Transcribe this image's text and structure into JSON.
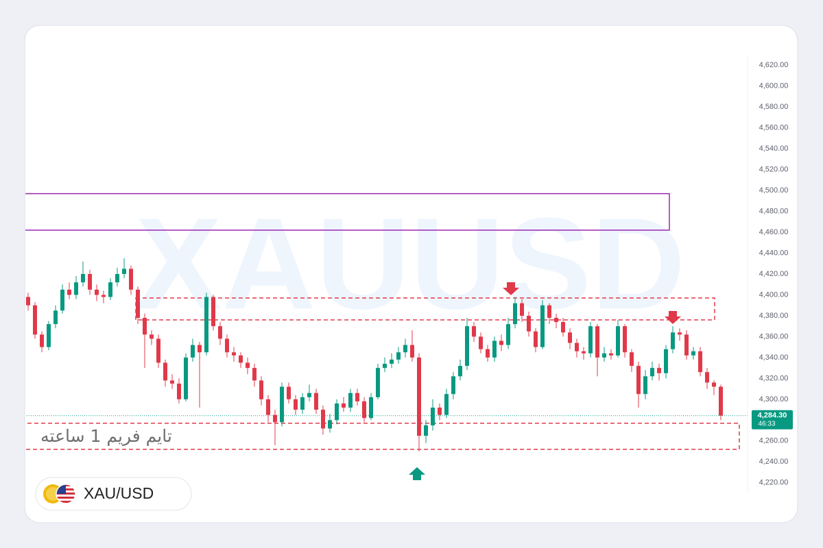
{
  "chart_data": {
    "type": "candlestick",
    "watermark": "XAUUSD",
    "timeframe_note": "تایم فریم 1 ساعته",
    "symbol": "XAU/USD",
    "up_color": "#089981",
    "down_color": "#e0394a",
    "ylim": [
      4210,
      4630
    ],
    "yticks": [
      {
        "value": 4220,
        "label": "4,220.00"
      },
      {
        "value": 4240,
        "label": "4,240.00"
      },
      {
        "value": 4260,
        "label": "4,260.00"
      },
      {
        "value": 4280,
        "label": "4,280.00"
      },
      {
        "value": 4300,
        "label": "4,300.00"
      },
      {
        "value": 4320,
        "label": "4,320.00"
      },
      {
        "value": 4340,
        "label": "4,340.00"
      },
      {
        "value": 4360,
        "label": "4,360.00"
      },
      {
        "value": 4380,
        "label": "4,380.00"
      },
      {
        "value": 4400,
        "label": "4,400.00"
      },
      {
        "value": 4420,
        "label": "4,420.00"
      },
      {
        "value": 4440,
        "label": "4,440.00"
      },
      {
        "value": 4460,
        "label": "4,460.00"
      },
      {
        "value": 4480,
        "label": "4,480.00"
      },
      {
        "value": 4500,
        "label": "4,500.00"
      },
      {
        "value": 4520,
        "label": "4,520.00"
      },
      {
        "value": 4540,
        "label": "4,540.00"
      },
      {
        "value": 4560,
        "label": "4,560.00"
      },
      {
        "value": 4580,
        "label": "4,580.00"
      },
      {
        "value": 4600,
        "label": "4,600.00"
      },
      {
        "value": 4620,
        "label": "4,620.00"
      }
    ],
    "last_price": {
      "value": 4284.3,
      "label": "4,284.30"
    },
    "countdown": "46:33",
    "zones": [
      {
        "top": 4497,
        "bottom": 4462,
        "color": "#9c27b0",
        "style": "solid"
      },
      {
        "top": 4397,
        "bottom": 4376,
        "color": "#e0394a",
        "style": "dashed"
      },
      {
        "top": 4277,
        "bottom": 4252,
        "color": "#e0394a",
        "style": "dashed"
      }
    ],
    "candles": {
      "open": [
        4398,
        4390,
        4362,
        4350,
        4372,
        4385,
        4405,
        4400,
        4412,
        4420,
        4405,
        4400,
        4398,
        4412,
        4420,
        4425,
        4405,
        4378,
        4362,
        4358,
        4335,
        4318,
        4315,
        4300,
        4340,
        4352,
        4345,
        4398,
        4370,
        4358,
        4345,
        4342,
        4335,
        4330,
        4318,
        4300,
        4285,
        4278,
        4312,
        4300,
        4290,
        4302,
        4306,
        4290,
        4272,
        4280,
        4296,
        4292,
        4306,
        4298,
        4282,
        4302,
        4330,
        4334,
        4338,
        4345,
        4352,
        4340,
        4265,
        4275,
        4292,
        4285,
        4305,
        4322,
        4332,
        4370,
        4360,
        4348,
        4340,
        4356,
        4352,
        4372,
        4392,
        4380,
        4365,
        4350,
        4390,
        4378,
        4374,
        4364,
        4354,
        4346,
        4344,
        4370,
        4340,
        4344,
        4342,
        4370,
        4345,
        4332,
        4305,
        4322,
        4330,
        4325,
        4348,
        4364,
        4362,
        4342,
        4346,
        4326,
        4316,
        4312
      ],
      "high": [
        4402,
        4393,
        4365,
        4375,
        4390,
        4410,
        4412,
        4418,
        4432,
        4424,
        4410,
        4404,
        4416,
        4426,
        4435,
        4428,
        4408,
        4382,
        4366,
        4362,
        4338,
        4324,
        4320,
        4344,
        4358,
        4355,
        4402,
        4400,
        4374,
        4362,
        4350,
        4345,
        4340,
        4334,
        4322,
        4304,
        4290,
        4316,
        4316,
        4304,
        4306,
        4314,
        4310,
        4294,
        4286,
        4300,
        4302,
        4310,
        4310,
        4302,
        4306,
        4334,
        4340,
        4344,
        4350,
        4358,
        4366,
        4344,
        4280,
        4300,
        4296,
        4310,
        4326,
        4338,
        4378,
        4374,
        4364,
        4352,
        4360,
        4362,
        4378,
        4398,
        4396,
        4384,
        4368,
        4395,
        4392,
        4382,
        4378,
        4368,
        4358,
        4350,
        4374,
        4372,
        4350,
        4348,
        4376,
        4372,
        4348,
        4336,
        4328,
        4336,
        4334,
        4352,
        4370,
        4368,
        4366,
        4350,
        4350,
        4330,
        4318,
        4314
      ],
      "low": [
        4385,
        4358,
        4345,
        4347,
        4368,
        4382,
        4396,
        4396,
        4408,
        4400,
        4394,
        4392,
        4395,
        4408,
        4416,
        4400,
        4372,
        4330,
        4352,
        4330,
        4312,
        4310,
        4296,
        4298,
        4336,
        4292,
        4342,
        4366,
        4352,
        4340,
        4336,
        4330,
        4324,
        4312,
        4294,
        4278,
        4256,
        4274,
        4296,
        4285,
        4286,
        4298,
        4286,
        4266,
        4268,
        4276,
        4288,
        4288,
        4294,
        4278,
        4280,
        4300,
        4326,
        4330,
        4334,
        4340,
        4336,
        4250,
        4258,
        4270,
        4280,
        4282,
        4300,
        4318,
        4328,
        4355,
        4344,
        4336,
        4336,
        4346,
        4348,
        4368,
        4374,
        4360,
        4345,
        4348,
        4372,
        4368,
        4360,
        4348,
        4340,
        4338,
        4340,
        4322,
        4336,
        4338,
        4340,
        4340,
        4326,
        4292,
        4300,
        4318,
        4318,
        4320,
        4344,
        4356,
        4338,
        4338,
        4322,
        4310,
        4304,
        4280
      ],
      "close": [
        4390,
        4362,
        4350,
        4372,
        4385,
        4405,
        4400,
        4412,
        4420,
        4405,
        4400,
        4398,
        4412,
        4420,
        4425,
        4405,
        4378,
        4362,
        4358,
        4335,
        4318,
        4315,
        4300,
        4340,
        4352,
        4345,
        4398,
        4370,
        4358,
        4345,
        4342,
        4335,
        4330,
        4318,
        4300,
        4285,
        4278,
        4312,
        4300,
        4290,
        4302,
        4306,
        4290,
        4272,
        4280,
        4296,
        4292,
        4306,
        4298,
        4282,
        4302,
        4330,
        4334,
        4338,
        4345,
        4352,
        4340,
        4265,
        4275,
        4292,
        4285,
        4305,
        4322,
        4332,
        4370,
        4360,
        4348,
        4340,
        4356,
        4352,
        4372,
        4392,
        4380,
        4365,
        4350,
        4390,
        4378,
        4374,
        4364,
        4354,
        4346,
        4344,
        4370,
        4340,
        4344,
        4342,
        4370,
        4345,
        4332,
        4305,
        4322,
        4330,
        4325,
        4348,
        4364,
        4362,
        4342,
        4346,
        4326,
        4316,
        4312,
        4284.3
      ]
    }
  }
}
